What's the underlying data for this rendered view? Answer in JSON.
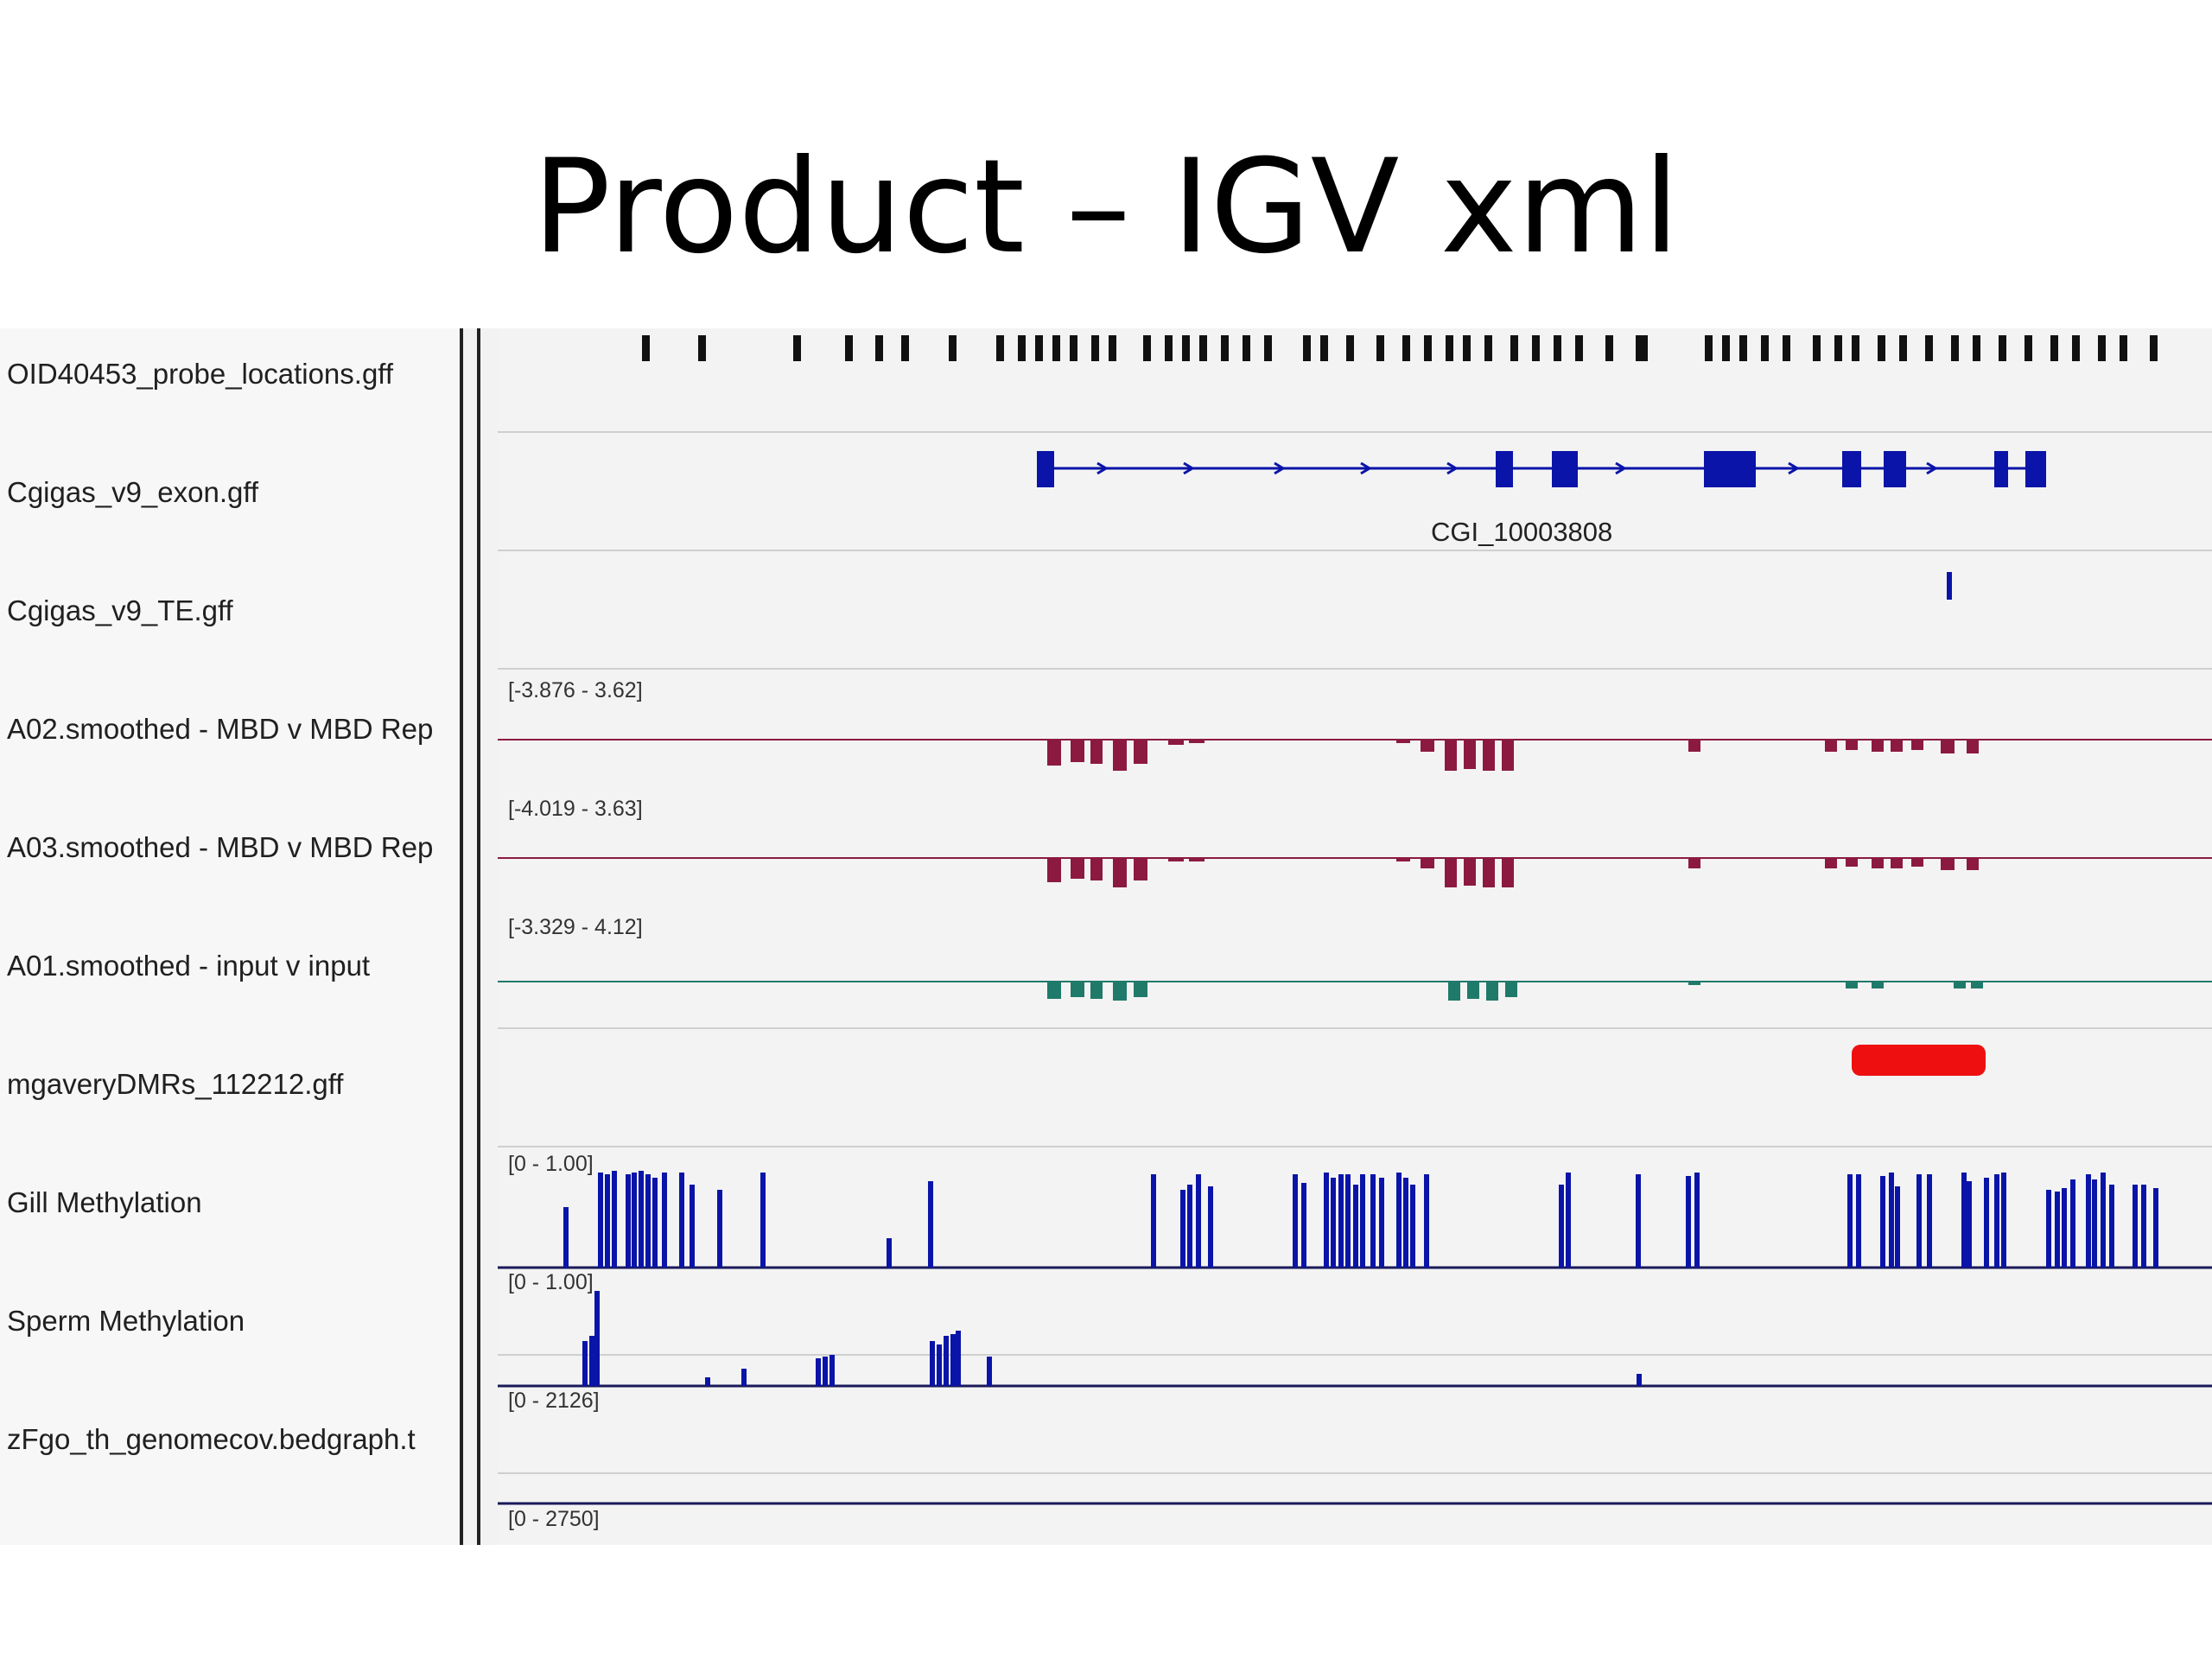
{
  "slide": {
    "title": "Product – IGV xml"
  },
  "tracks": [
    {
      "id": "probe",
      "name": "OID40453_probe_locations.gff"
    },
    {
      "id": "exon",
      "name": "Cgigas_v9_exon.gff",
      "feature_label": "CGI_10003808"
    },
    {
      "id": "te",
      "name": "Cgigas_v9_TE.gff"
    },
    {
      "id": "a02",
      "name": "A02.smoothed - MBD v MBD Rep",
      "range": "[-3.876 - 3.62]"
    },
    {
      "id": "a03",
      "name": "A03.smoothed - MBD v MBD Rep",
      "range": "[-4.019 - 3.63]"
    },
    {
      "id": "a01",
      "name": "A01.smoothed - input v input",
      "range": "[-3.329 - 4.12]"
    },
    {
      "id": "dmr",
      "name": "mgaveryDMRs_112212.gff"
    },
    {
      "id": "gill",
      "name": "Gill Methylation",
      "range": "[0 - 1.00]"
    },
    {
      "id": "sperm",
      "name": "Sperm Methylation",
      "range": "[0 - 1.00]"
    },
    {
      "id": "cov",
      "name": "zFgo_th_genomecov.bedgraph.t",
      "range": "[0 - 2126]"
    }
  ],
  "extra_range": "[0 - 2750]",
  "colors": {
    "feature_blue": "#0a14a8",
    "track_maroon": "#8c1a40",
    "track_teal": "#1f7a6a",
    "dmr_red": "#ee1010",
    "probe_black": "#111111"
  }
}
